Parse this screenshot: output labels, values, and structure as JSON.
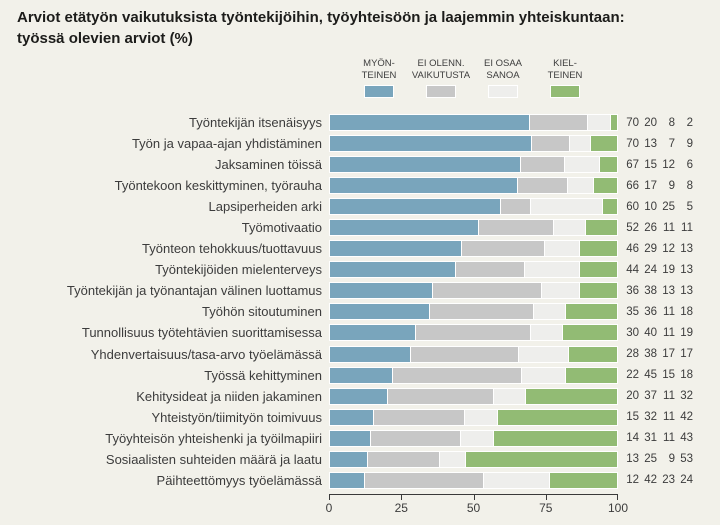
{
  "title": {
    "line1": "Arviot etätyön vaikutuksista työntekijöihin, työyhteisöön ja laajemmin yhteiskuntaan:",
    "line2": "työssä olevien arviot (%)"
  },
  "colors": {
    "background": "#f2f1ea",
    "title_text": "#1c1c1a",
    "label_text": "#3c3c3c",
    "axis": "#3a3a3a",
    "segment_separator": "#ffffff",
    "positive_blue": "#79a5bc",
    "neutral_gray": "#c7c7c7",
    "dontknow_lightgray": "#eeeeec",
    "negative_green": "#92bb74"
  },
  "legend": {
    "items": [
      {
        "line1": "MYÖN-",
        "line2": "TEINEN",
        "color": "#79a5bc"
      },
      {
        "line1": "EI OLENN.",
        "line2": "VAIKUTUSTA",
        "color": "#c7c7c7"
      },
      {
        "line1": "EI OSAA",
        "line2": "SANOA",
        "color": "#eeeeec"
      },
      {
        "line1": "KIEL-",
        "line2": "TEINEN",
        "color": "#92bb74"
      }
    ]
  },
  "chart_data": {
    "type": "bar",
    "orientation": "horizontal-stacked",
    "unit": "%",
    "title": "Arviot etätyön vaikutuksista työntekijöihin, työyhteisöön ja laajemmin yhteiskuntaan: työssä olevien arviot (%)",
    "xlim": [
      0,
      100
    ],
    "x_ticks": [
      0,
      25,
      50,
      75,
      100
    ],
    "grid": false,
    "legend_position": "top",
    "value_labels_shown": true,
    "categories": [
      "Työntekijän itsenäisyys",
      "Työn ja vapaa-ajan yhdistäminen",
      "Jaksaminen töissä",
      "Työntekoon keskittyminen, työrauha",
      "Lapsiperheiden arki",
      "Työmotivaatio",
      "Työnteon tehokkuus/tuottavuus",
      "Työntekijöiden mielenterveys",
      "Työntekijän ja työnantajan välinen luottamus",
      "Työhön sitoutuminen",
      "Tunnollisuus työtehtävien suorittamisessa",
      "Yhdenvertaisuus/tasa-arvo työelämässä",
      "Työssä kehittyminen",
      "Kehitysideat ja niiden jakaminen",
      "Yhteistyön/tiimityön toimivuus",
      "Työyhteisön yhteishenki ja työilmapiiri",
      "Sosiaalisten suhteiden määrä ja laatu",
      "Päihteettömyys työelämässä"
    ],
    "series": [
      {
        "name": "MYÖNTEINEN",
        "color": "#79a5bc",
        "values": [
          70,
          70,
          67,
          66,
          60,
          52,
          46,
          44,
          36,
          35,
          30,
          28,
          22,
          20,
          15,
          14,
          13,
          12
        ]
      },
      {
        "name": "EI OLENN. VAIKUTUSTA",
        "color": "#c7c7c7",
        "values": [
          20,
          13,
          15,
          17,
          10,
          26,
          29,
          24,
          38,
          36,
          40,
          38,
          45,
          37,
          32,
          31,
          25,
          42
        ]
      },
      {
        "name": "EI OSAA SANOA",
        "color": "#eeeeec",
        "values": [
          8,
          7,
          12,
          9,
          25,
          11,
          12,
          19,
          13,
          11,
          11,
          17,
          15,
          11,
          11,
          11,
          9,
          23
        ]
      },
      {
        "name": "KIELTEINEN",
        "color": "#92bb74",
        "values": [
          2,
          9,
          6,
          8,
          5,
          11,
          13,
          13,
          13,
          18,
          19,
          17,
          18,
          32,
          42,
          43,
          53,
          24
        ]
      }
    ]
  }
}
